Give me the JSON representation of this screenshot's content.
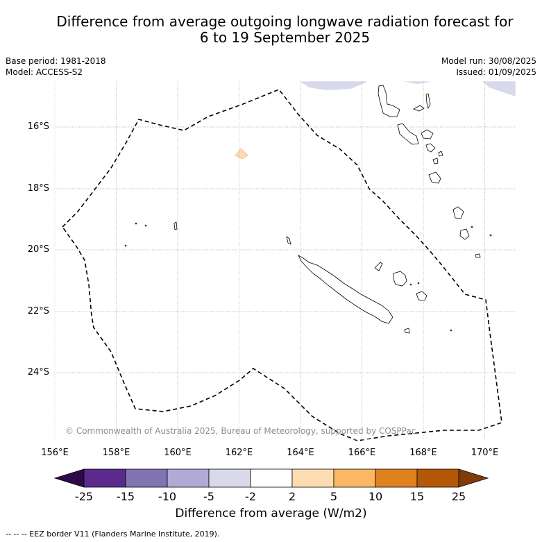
{
  "title_line1": "Difference from average outgoing longwave radiation forecast for",
  "title_line2": "6 to 19 September 2025",
  "base_period": "Base period: 1981-2018",
  "model": "Model: ACCESS-S2",
  "model_run": "Model run: 30/08/2025",
  "issued": "Issued: 01/09/2025",
  "lat_labels": [
    "16°S",
    "18°S",
    "20°S",
    "22°S",
    "24°S"
  ],
  "lon_labels": [
    "156°E",
    "158°E",
    "160°E",
    "162°E",
    "164°E",
    "166°E",
    "168°E",
    "170°E"
  ],
  "copyright": "© Commonwealth of Australia 2025, Bureau of Meteorology, supported by COSPPac",
  "colorbar": {
    "ticks": [
      "-25",
      "-15",
      "-10",
      "-5",
      "-2",
      "2",
      "5",
      "10",
      "15",
      "25"
    ],
    "colors": [
      "#2d0b4a",
      "#5b2a8c",
      "#8274b0",
      "#b1aad4",
      "#d9d9ec",
      "#ffffff",
      "#fddcb1",
      "#fbb761",
      "#e0821c",
      "#b35806",
      "#7f3b08"
    ],
    "label": "Difference from average (W/m2)"
  },
  "footnote": "-- -- -- EEZ border V11 (Flanders Marine Institute, 2019).",
  "map": {
    "extent": {
      "lon_min": 156,
      "lon_max": 171,
      "lat_min": -26,
      "lat_max": -14.5
    }
  }
}
